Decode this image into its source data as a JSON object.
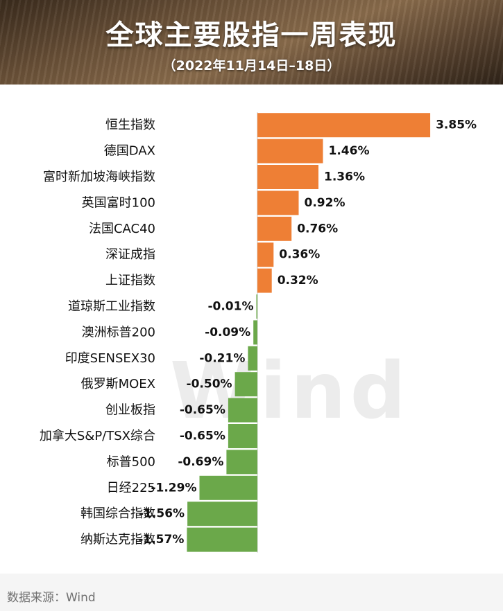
{
  "header": {
    "title": "全球主要股指一周表现",
    "subtitle": "（2022年11月14日–18日）"
  },
  "watermark": "Wind",
  "source": "数据来源：Wind",
  "colors": {
    "positive": "#ee7f35",
    "negative": "#6ba84a",
    "text": "#111111"
  },
  "chart_data": {
    "type": "bar",
    "orientation": "horizontal",
    "title": "全球主要股指一周表现",
    "subtitle": "（2022年11月14日–18日）",
    "xlabel": "",
    "ylabel": "",
    "unit": "%",
    "grid": false,
    "legend": "none",
    "categories": [
      "恒生指数",
      "德国DAX",
      "富时新加坡海峡指数",
      "英国富时100",
      "法国CAC40",
      "深证成指",
      "上证指数",
      "道琼斯工业指数",
      "澳洲标普200",
      "印度SENSEX30",
      "俄罗斯MOEX",
      "创业板指",
      "加拿大S&P/TSX综合",
      "标普500",
      "日经225",
      "韩国综合指数",
      "纳斯达克指数"
    ],
    "values": [
      3.85,
      1.46,
      1.36,
      0.92,
      0.76,
      0.36,
      0.32,
      -0.01,
      -0.09,
      -0.21,
      -0.5,
      -0.65,
      -0.65,
      -0.69,
      -1.29,
      -1.56,
      -1.57
    ],
    "labels": [
      "3.85%",
      "1.46%",
      "1.36%",
      "0.92%",
      "0.76%",
      "0.36%",
      "0.32%",
      "-0.01%",
      "-0.09%",
      "-0.21%",
      "-0.50%",
      "-0.65%",
      "-0.65%",
      "-0.69%",
      "-1.29%",
      "-1.56%",
      "-1.57%"
    ]
  }
}
